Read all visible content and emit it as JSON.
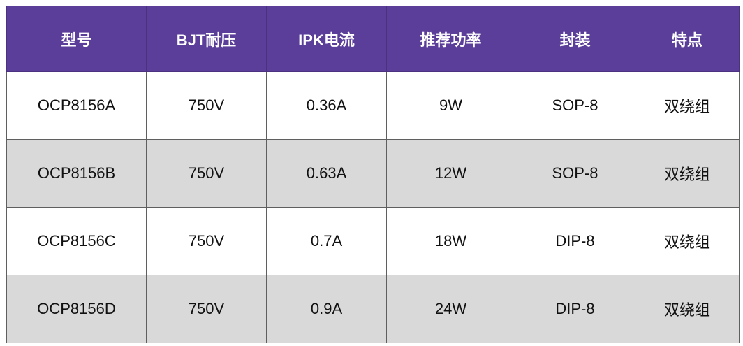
{
  "table": {
    "columns": [
      "型号",
      "BJT耐压",
      "IPK电流",
      "推荐功率",
      "封装",
      "特点"
    ],
    "rows": [
      [
        "OCP8156A",
        "750V",
        "0.36A",
        "9W",
        "SOP-8",
        "双绕组"
      ],
      [
        "OCP8156B",
        "750V",
        "0.63A",
        "12W",
        "SOP-8",
        "双绕组"
      ],
      [
        "OCP8156C",
        "750V",
        "0.7A",
        "18W",
        "DIP-8",
        "双绕组"
      ],
      [
        "OCP8156D",
        "750V",
        "0.9A",
        "24W",
        "DIP-8",
        "双绕组"
      ]
    ]
  }
}
